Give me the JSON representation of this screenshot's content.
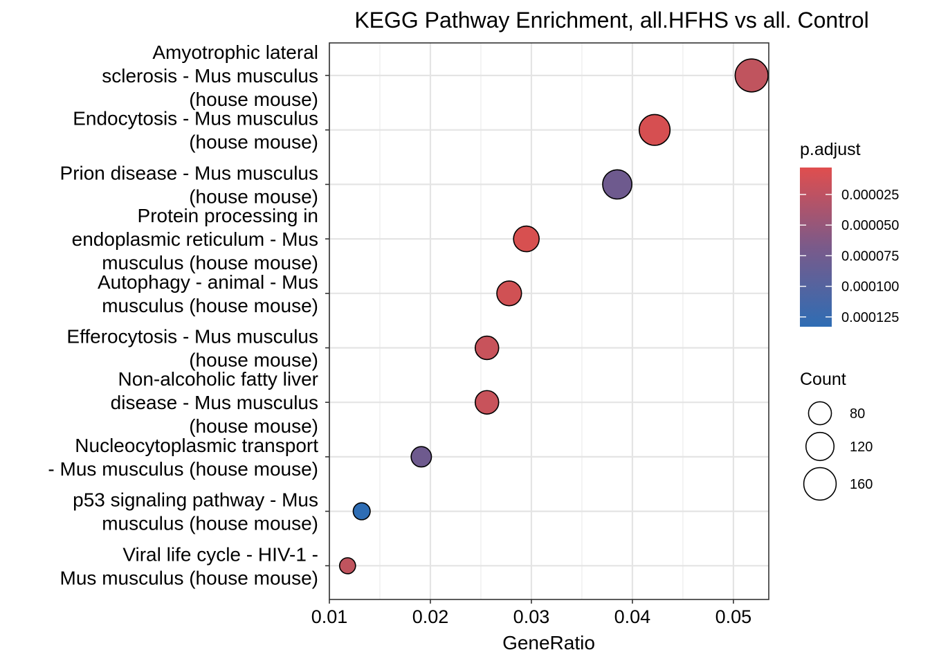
{
  "chart_data": {
    "type": "scatter",
    "title": "KEGG Pathway Enrichment, all.HFHS vs all. Control",
    "xlabel": "GeneRatio",
    "ylabel": "",
    "xlim": [
      0.01,
      0.0535
    ],
    "x_ticks": [
      0.01,
      0.02,
      0.03,
      0.04,
      0.05
    ],
    "x_tick_labels": [
      "0.01",
      "0.02",
      "0.03",
      "0.04",
      "0.05"
    ],
    "grid": true,
    "points": [
      {
        "label_lines": [
          "Amyotrophic lateral",
          "sclerosis - Mus musculus",
          "(house mouse)"
        ],
        "gene_ratio": 0.0518,
        "count": 165,
        "p_adjust": 4.5e-05,
        "color": "#c0545e"
      },
      {
        "label_lines": [
          "Endocytosis - Mus musculus",
          "(house mouse)"
        ],
        "gene_ratio": 0.0422,
        "count": 145,
        "p_adjust": 1.5e-05,
        "color": "#d64f51"
      },
      {
        "label_lines": [
          "Prion disease - Mus musculus",
          "(house mouse)"
        ],
        "gene_ratio": 0.0385,
        "count": 130,
        "p_adjust": 9.2e-05,
        "color": "#6e5a8e"
      },
      {
        "label_lines": [
          "Protein processing in",
          "endoplasmic reticulum - Mus",
          "musculus (house mouse)"
        ],
        "gene_ratio": 0.0295,
        "count": 100,
        "p_adjust": 1.2e-05,
        "color": "#d75050"
      },
      {
        "label_lines": [
          "Autophagy - animal - Mus",
          "musculus (house mouse)"
        ],
        "gene_ratio": 0.0278,
        "count": 93,
        "p_adjust": 2.5e-05,
        "color": "#d05154"
      },
      {
        "label_lines": [
          "Efferocytosis - Mus musculus",
          "(house mouse)"
        ],
        "gene_ratio": 0.0256,
        "count": 84,
        "p_adjust": 4.2e-05,
        "color": "#c8535b"
      },
      {
        "label_lines": [
          "Non-alcoholic fatty liver",
          "disease - Mus musculus",
          "(house mouse)"
        ],
        "gene_ratio": 0.0256,
        "count": 84,
        "p_adjust": 4.2e-05,
        "color": "#c8535b"
      },
      {
        "label_lines": [
          "Nucleocytoplasmic transport",
          "- Mus musculus (house mouse)"
        ],
        "gene_ratio": 0.0191,
        "count": 63,
        "p_adjust": 9e-05,
        "color": "#6e5a8e"
      },
      {
        "label_lines": [
          "p53 signaling pathway - Mus",
          "musculus (house mouse)"
        ],
        "gene_ratio": 0.0132,
        "count": 44,
        "p_adjust": 0.000128,
        "color": "#2e6db4"
      },
      {
        "label_lines": [
          "Viral life cycle - HIV-1 -",
          "Mus musculus (house mouse)"
        ],
        "gene_ratio": 0.0118,
        "count": 39,
        "p_adjust": 4e-05,
        "color": "#c0545e"
      }
    ],
    "legend_color": {
      "title": "p.adjust",
      "placement": "right",
      "low_color": "#2e6db4",
      "mid_color": "#7a5a8a",
      "high_color": "#e04e4e",
      "ticks": [
        {
          "value": 2.5e-05,
          "label": "0.000025"
        },
        {
          "value": 5e-05,
          "label": "0.000050"
        },
        {
          "value": 7.5e-05,
          "label": "0.000075"
        },
        {
          "value": 0.0001,
          "label": "0.000100"
        },
        {
          "value": 0.000125,
          "label": "0.000125"
        }
      ],
      "range": [
        3e-06,
        0.000133
      ]
    },
    "legend_size": {
      "title": "Count",
      "placement": "right",
      "entries": [
        {
          "count": 80,
          "label": "80"
        },
        {
          "count": 120,
          "label": "120"
        },
        {
          "count": 160,
          "label": "160"
        }
      ]
    }
  }
}
